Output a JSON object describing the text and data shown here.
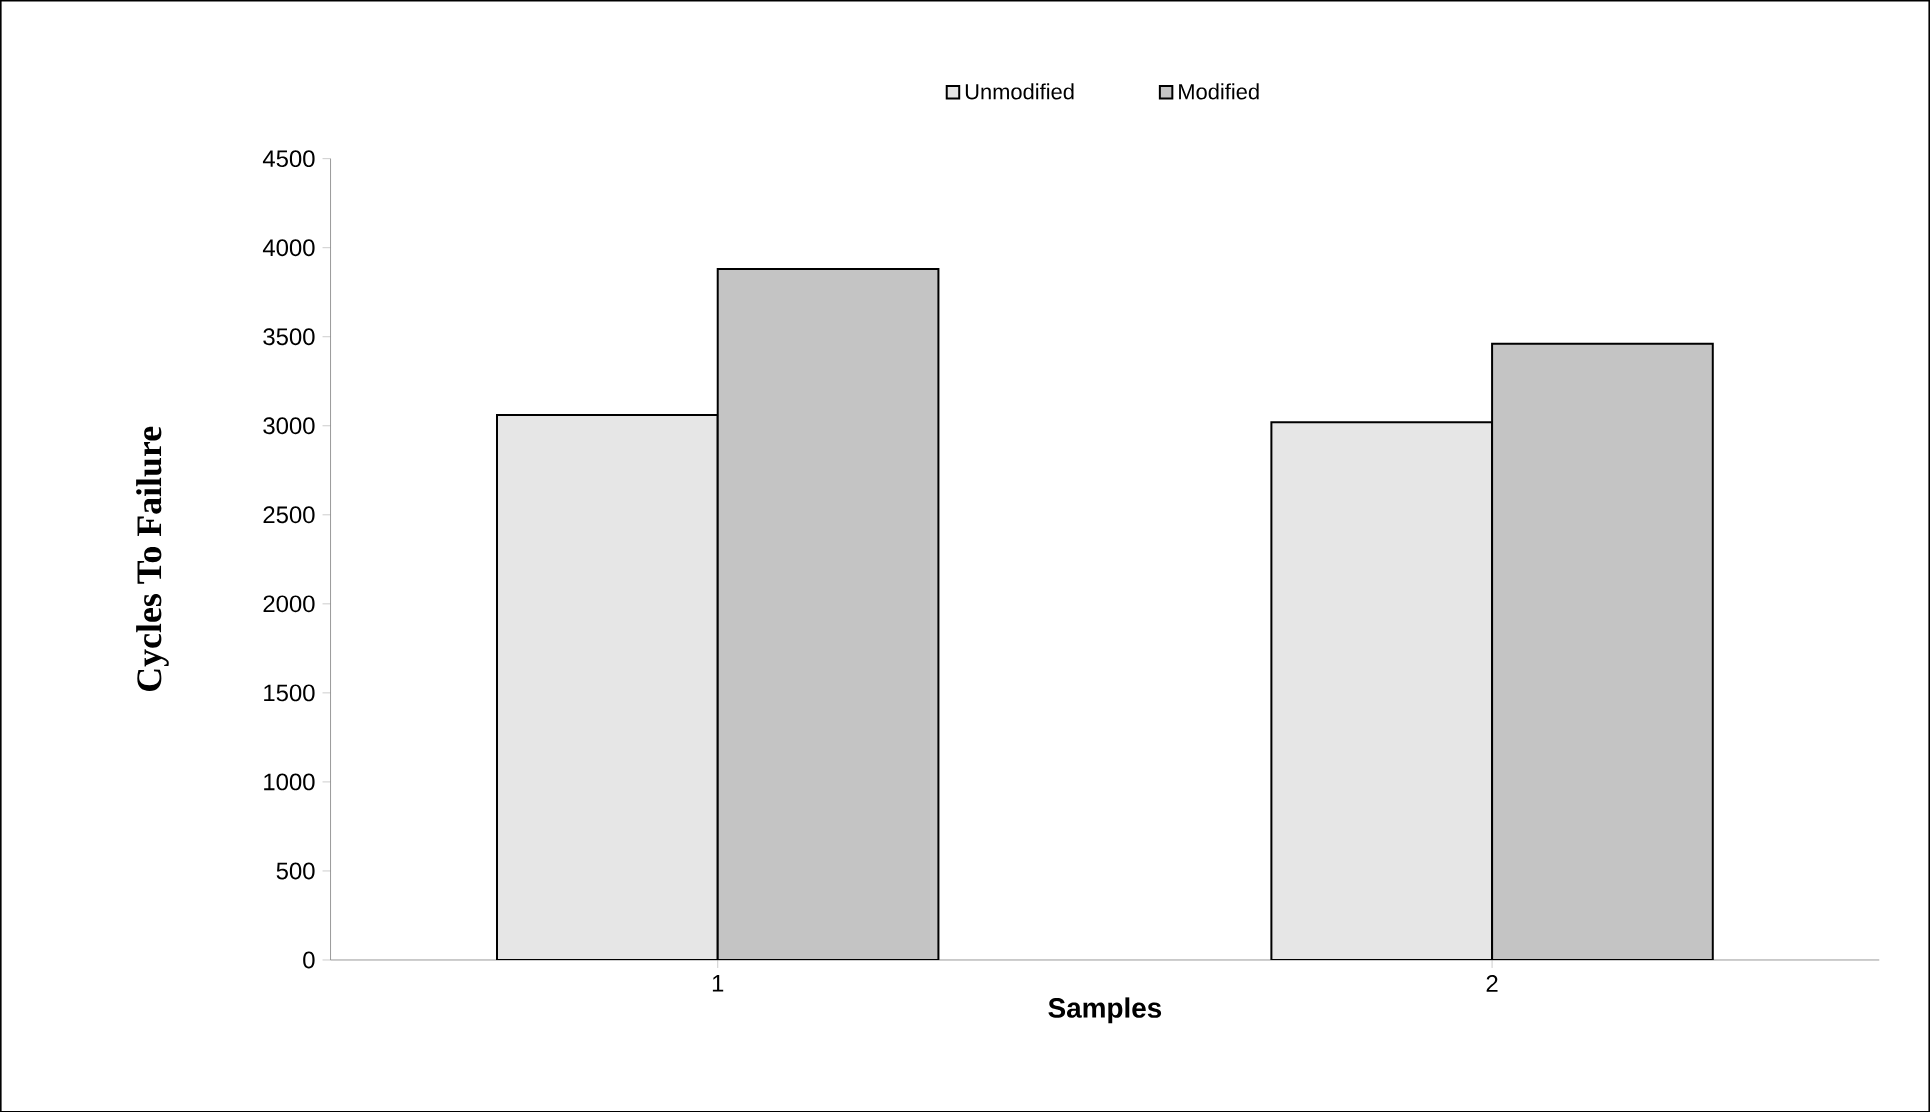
{
  "chart_data": {
    "type": "bar",
    "xlabel": "Samples",
    "ylabel": "Cycles To Failure",
    "categories": [
      "1",
      "2"
    ],
    "series": [
      {
        "name": "Unmodified",
        "color": "#e6e6e6",
        "values": [
          3060,
          3020
        ]
      },
      {
        "name": "Modified",
        "color": "#c4c4c4",
        "values": [
          3880,
          3460
        ]
      }
    ],
    "ylim": [
      0,
      4500
    ],
    "yticks": [
      0,
      500,
      1000,
      1500,
      2000,
      2500,
      3000,
      3500,
      4000,
      4500
    ],
    "legend": "top",
    "grid": false
  }
}
